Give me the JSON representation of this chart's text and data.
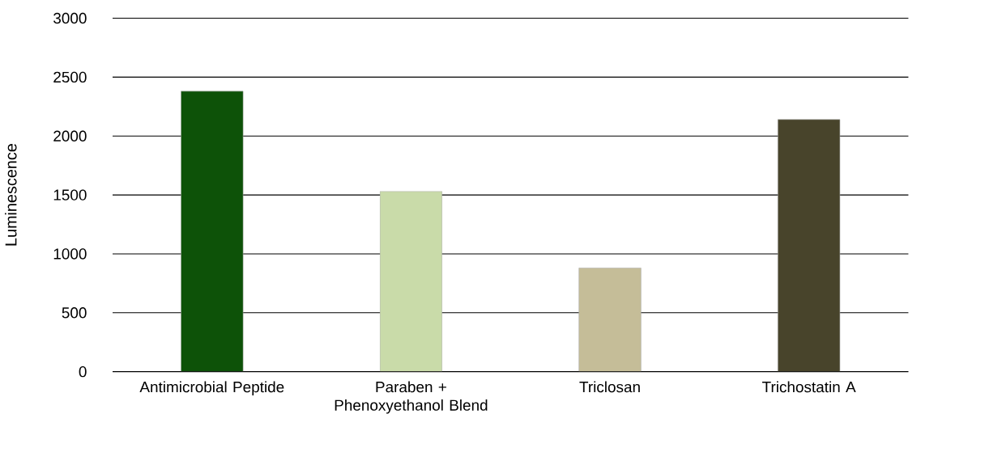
{
  "chart_data": {
    "type": "bar",
    "ylabel": "Luminescence",
    "categories": [
      "Antimicrobial Peptide",
      "Paraben + Phenoxyethanol Blend",
      "Triclosan",
      "Trichostatin A"
    ],
    "values": [
      2380,
      1530,
      880,
      2140
    ],
    "colors": [
      "#0d5208",
      "#c9dba9",
      "#c5bd98",
      "#48442b"
    ],
    "ylim": [
      0,
      3000
    ],
    "yticks": [
      0,
      500,
      1000,
      1500,
      2000,
      2500,
      3000
    ],
    "grid": "y"
  }
}
